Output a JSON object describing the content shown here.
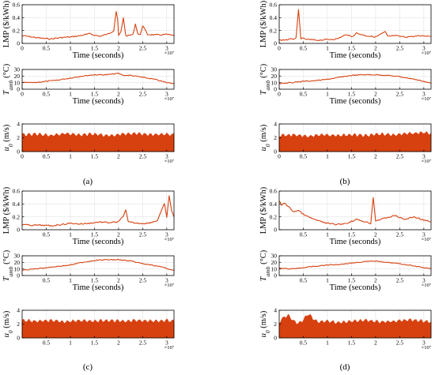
{
  "figure": {
    "panel_labels": [
      "(a)",
      "(b)",
      "(c)",
      "(d)"
    ],
    "x_exponent_label": "×10⁷",
    "xlabel": "Time (seconds)"
  },
  "colors": {
    "series": "#d7410f",
    "axis": "#000000",
    "grid": "#e3e3e3"
  },
  "chart_data": [
    {
      "panel": "(a)",
      "row": "lmp",
      "type": "line",
      "ylabel": "LMP ($/kWh)",
      "xlabel": "Time (seconds)",
      "xlim": [
        0,
        3.15
      ],
      "ylim": [
        0,
        0.6
      ],
      "xticks": [
        0,
        0.5,
        1,
        1.5,
        2,
        2.5,
        3
      ],
      "yticks": [
        0,
        0.2,
        0.4,
        0.6
      ],
      "x": [
        0,
        0.2,
        0.4,
        0.6,
        0.8,
        1.0,
        1.2,
        1.4,
        1.5,
        1.6,
        1.8,
        1.9,
        1.95,
        1.98,
        2.0,
        2.05,
        2.1,
        2.15,
        2.2,
        2.3,
        2.35,
        2.4,
        2.45,
        2.5,
        2.6,
        2.8,
        3.0,
        3.15
      ],
      "y": [
        0.12,
        0.1,
        0.08,
        0.07,
        0.09,
        0.1,
        0.12,
        0.15,
        0.13,
        0.11,
        0.15,
        0.2,
        0.5,
        0.38,
        0.12,
        0.18,
        0.4,
        0.12,
        0.12,
        0.14,
        0.3,
        0.15,
        0.13,
        0.28,
        0.14,
        0.13,
        0.14,
        0.12
      ]
    },
    {
      "panel": "(a)",
      "row": "temp",
      "type": "line",
      "ylabel": "T_amb (°C)",
      "xlabel": "Time (seconds)",
      "xlim": [
        0,
        3.15
      ],
      "ylim": [
        0,
        30
      ],
      "xticks": [
        0,
        0.5,
        1,
        1.5,
        2,
        2.5,
        3
      ],
      "yticks": [
        0,
        10,
        20,
        30
      ],
      "x": [
        0,
        0.25,
        0.5,
        0.75,
        1.0,
        1.25,
        1.5,
        1.75,
        2.0,
        2.1,
        2.25,
        2.5,
        2.75,
        3.0,
        3.15
      ],
      "y": [
        10,
        10,
        12,
        14,
        17,
        20,
        22,
        22,
        24,
        21,
        21,
        18,
        15,
        10,
        9
      ]
    },
    {
      "panel": "(a)",
      "row": "wind",
      "type": "area",
      "ylabel": "u_0 (m/s)",
      "xlabel": "Time (seconds)",
      "xlim": [
        0,
        3.15
      ],
      "ylim": [
        0,
        4
      ],
      "xticks": [
        0,
        0.5,
        1,
        1.5,
        2,
        2.5,
        3
      ],
      "yticks": [
        0,
        2,
        4
      ],
      "x": [
        0,
        0.3,
        0.6,
        0.9,
        1.2,
        1.5,
        1.8,
        2.1,
        2.4,
        2.7,
        3.0,
        3.15
      ],
      "y": [
        2.4,
        2.5,
        2.3,
        2.6,
        2.4,
        2.5,
        2.3,
        2.5,
        2.6,
        2.4,
        2.5,
        2.4
      ]
    },
    {
      "panel": "(b)",
      "row": "lmp",
      "type": "line",
      "ylabel": "LMP ($/kWh)",
      "xlabel": "Time (seconds)",
      "xlim": [
        0,
        3.15
      ],
      "ylim": [
        0,
        0.6
      ],
      "xticks": [
        0,
        0.5,
        1,
        1.5,
        2,
        2.5,
        3
      ],
      "yticks": [
        0,
        0.2,
        0.4,
        0.6
      ],
      "x": [
        0,
        0.2,
        0.35,
        0.4,
        0.45,
        0.6,
        0.8,
        1.0,
        1.2,
        1.4,
        1.5,
        1.6,
        1.8,
        2.0,
        2.2,
        2.25,
        2.4,
        2.6,
        2.8,
        3.0,
        3.15
      ],
      "y": [
        0.05,
        0.06,
        0.08,
        0.52,
        0.08,
        0.06,
        0.05,
        0.06,
        0.07,
        0.14,
        0.1,
        0.16,
        0.12,
        0.1,
        0.18,
        0.11,
        0.12,
        0.1,
        0.11,
        0.12,
        0.11
      ]
    },
    {
      "panel": "(b)",
      "row": "temp",
      "type": "line",
      "ylabel": "T_amb (°C)",
      "xlabel": "Time (seconds)",
      "xlim": [
        0,
        3.15
      ],
      "ylim": [
        0,
        30
      ],
      "xticks": [
        0,
        0.5,
        1,
        1.5,
        2,
        2.5,
        3
      ],
      "yticks": [
        0,
        10,
        20,
        30
      ],
      "x": [
        0,
        0.25,
        0.5,
        0.75,
        1.0,
        1.25,
        1.5,
        1.75,
        2.0,
        2.25,
        2.5,
        2.75,
        3.0,
        3.15
      ],
      "y": [
        9,
        10,
        12,
        13,
        15,
        18,
        21,
        22,
        22,
        21,
        19,
        16,
        12,
        9
      ]
    },
    {
      "panel": "(b)",
      "row": "wind",
      "type": "area",
      "ylabel": "u_0 (m/s)",
      "xlabel": "Time (seconds)",
      "xlim": [
        0,
        3.15
      ],
      "ylim": [
        0,
        4
      ],
      "xticks": [
        0,
        0.5,
        1,
        1.5,
        2,
        2.5,
        3
      ],
      "yticks": [
        0,
        2,
        4
      ],
      "x": [
        0,
        0.3,
        0.6,
        0.9,
        1.2,
        1.5,
        1.8,
        2.1,
        2.4,
        2.7,
        3.0,
        3.15
      ],
      "y": [
        2.3,
        2.4,
        2.2,
        2.4,
        2.3,
        2.4,
        2.3,
        2.5,
        2.4,
        2.6,
        2.7,
        2.6
      ]
    },
    {
      "panel": "(c)",
      "row": "lmp",
      "type": "line",
      "ylabel": "LMP ($/kWh)",
      "xlabel": "Time (seconds)",
      "xlim": [
        0,
        3.15
      ],
      "ylim": [
        0,
        0.6
      ],
      "xticks": [
        0.5,
        1,
        1.5,
        2,
        2.5,
        3
      ],
      "yticks": [
        0,
        0.2,
        0.4,
        0.6
      ],
      "x": [
        0,
        0.2,
        0.4,
        0.6,
        0.8,
        1.0,
        1.2,
        1.4,
        1.6,
        1.8,
        2.0,
        2.1,
        2.15,
        2.2,
        2.4,
        2.6,
        2.8,
        2.95,
        3.0,
        3.05,
        3.1,
        3.15
      ],
      "y": [
        0.08,
        0.07,
        0.07,
        0.06,
        0.08,
        0.1,
        0.09,
        0.1,
        0.12,
        0.11,
        0.12,
        0.22,
        0.3,
        0.12,
        0.1,
        0.1,
        0.14,
        0.4,
        0.2,
        0.52,
        0.3,
        0.2
      ]
    },
    {
      "panel": "(c)",
      "row": "temp",
      "type": "line",
      "ylabel": "T_amb (°C)",
      "xlabel": "Time (seconds)",
      "xlim": [
        0,
        3.15
      ],
      "ylim": [
        0,
        30
      ],
      "xticks": [
        0.5,
        1,
        1.5,
        2,
        2.5,
        3
      ],
      "yticks": [
        0,
        10,
        20,
        30
      ],
      "x": [
        0,
        0.25,
        0.5,
        0.75,
        1.0,
        1.25,
        1.5,
        1.75,
        2.0,
        2.25,
        2.5,
        2.75,
        3.0,
        3.15
      ],
      "y": [
        8,
        10,
        12,
        14,
        16,
        20,
        23,
        24,
        24,
        22,
        18,
        15,
        11,
        8
      ]
    },
    {
      "panel": "(c)",
      "row": "wind",
      "type": "area",
      "ylabel": "u_0 (m/s)",
      "xlabel": "Time (seconds)",
      "xlim": [
        0,
        3.15
      ],
      "ylim": [
        0,
        4
      ],
      "xticks": [
        0.5,
        1,
        1.5,
        2,
        2.5,
        3
      ],
      "yticks": [
        0,
        2,
        4
      ],
      "x": [
        0,
        0.3,
        0.6,
        0.9,
        1.2,
        1.5,
        1.8,
        2.1,
        2.4,
        2.7,
        3.0,
        3.15
      ],
      "y": [
        2.5,
        2.4,
        2.5,
        2.3,
        2.5,
        2.4,
        2.5,
        2.4,
        2.5,
        2.4,
        2.5,
        2.4
      ]
    },
    {
      "panel": "(d)",
      "row": "lmp",
      "type": "line",
      "ylabel": "LMP ($/kWh)",
      "xlabel": "Time (seconds)",
      "xlim": [
        0,
        3.15
      ],
      "ylim": [
        0,
        0.6
      ],
      "xticks": [
        0.5,
        1,
        1.5,
        2,
        2.5,
        3
      ],
      "yticks": [
        0,
        0.2,
        0.4,
        0.6
      ],
      "x": [
        0,
        0.05,
        0.1,
        0.2,
        0.3,
        0.4,
        0.5,
        0.6,
        0.8,
        1.0,
        1.2,
        1.4,
        1.6,
        1.8,
        1.9,
        1.95,
        2.0,
        2.2,
        2.4,
        2.6,
        2.8,
        3.0,
        3.15
      ],
      "y": [
        0.45,
        0.38,
        0.42,
        0.35,
        0.28,
        0.3,
        0.24,
        0.2,
        0.14,
        0.1,
        0.08,
        0.1,
        0.16,
        0.12,
        0.1,
        0.5,
        0.14,
        0.18,
        0.22,
        0.16,
        0.2,
        0.15,
        0.12
      ]
    },
    {
      "panel": "(d)",
      "row": "temp",
      "type": "line",
      "ylabel": "T_amb (°C)",
      "xlabel": "Time (seconds)",
      "xlim": [
        0,
        3.15
      ],
      "ylim": [
        0,
        30
      ],
      "xticks": [
        0.5,
        1,
        1.5,
        2,
        2.5,
        3
      ],
      "yticks": [
        0,
        10,
        20,
        30
      ],
      "x": [
        0,
        0.25,
        0.5,
        0.75,
        1.0,
        1.25,
        1.5,
        1.75,
        2.0,
        2.25,
        2.5,
        2.75,
        3.0,
        3.15
      ],
      "y": [
        11,
        10,
        12,
        14,
        16,
        17,
        19,
        21,
        22,
        20,
        18,
        15,
        12,
        10
      ]
    },
    {
      "panel": "(d)",
      "row": "wind",
      "type": "area",
      "ylabel": "u_0 (m/s)",
      "xlabel": "Time (seconds)",
      "xlim": [
        0,
        3.15
      ],
      "ylim": [
        0,
        4
      ],
      "xticks": [
        0.5,
        1,
        1.5,
        2,
        2.5,
        3
      ],
      "yticks": [
        0,
        2,
        4
      ],
      "x": [
        0,
        0.1,
        0.2,
        0.3,
        0.4,
        0.5,
        0.6,
        0.7,
        0.8,
        1.0,
        1.2,
        1.5,
        1.8,
        2.1,
        2.4,
        2.7,
        3.0,
        3.15
      ],
      "y": [
        2.2,
        3.0,
        3.2,
        2.4,
        2.0,
        2.6,
        3.5,
        2.8,
        2.3,
        2.4,
        2.2,
        2.4,
        2.5,
        2.3,
        2.4,
        2.6,
        2.4,
        2.3
      ]
    }
  ]
}
